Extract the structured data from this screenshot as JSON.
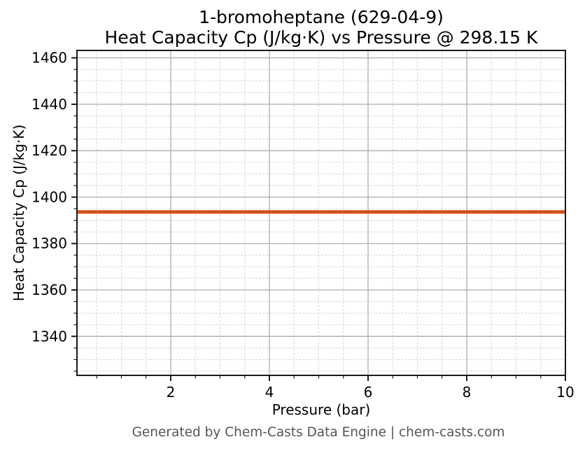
{
  "title": {
    "line1": "1-bromoheptane (629-04-9)",
    "line2": "Heat Capacity Cp (J/kg·K) vs Pressure @ 298.15 K"
  },
  "footer": {
    "text": "Generated by Chem-Casts Data Engine | chem-casts.com",
    "color": "#555555"
  },
  "chart_data": {
    "type": "line",
    "title": "1-bromoheptane (629-04-9)\nHeat Capacity Cp (J/kg·K) vs Pressure @ 298.15 K",
    "xlabel": "Pressure (bar)",
    "ylabel": "Heat Capacity Cp (J/kg·K)",
    "series": [
      {
        "name": "Cp",
        "x": [
          0.1,
          10
        ],
        "values": [
          1393.6,
          1393.6
        ],
        "color": "#d0521f",
        "linewidth": 5
      }
    ],
    "xlim": [
      0.1,
      10
    ],
    "ylim": [
      1323.2,
      1463.2
    ],
    "x_major_ticks": [
      2,
      4,
      6,
      8,
      10
    ],
    "x_minor_step": 0.5,
    "y_major_ticks": [
      1340,
      1360,
      1380,
      1400,
      1420,
      1440,
      1460
    ],
    "y_minor_step": 5,
    "grid": "major and minor, box spines on all sides",
    "legend": "none"
  },
  "style": {
    "major_grid_color": "#adadad",
    "minor_grid_color": "#d9d9d9",
    "spine_color": "#1a1a1a",
    "tick_label_color": "#000000",
    "tick_label_size": 20
  }
}
